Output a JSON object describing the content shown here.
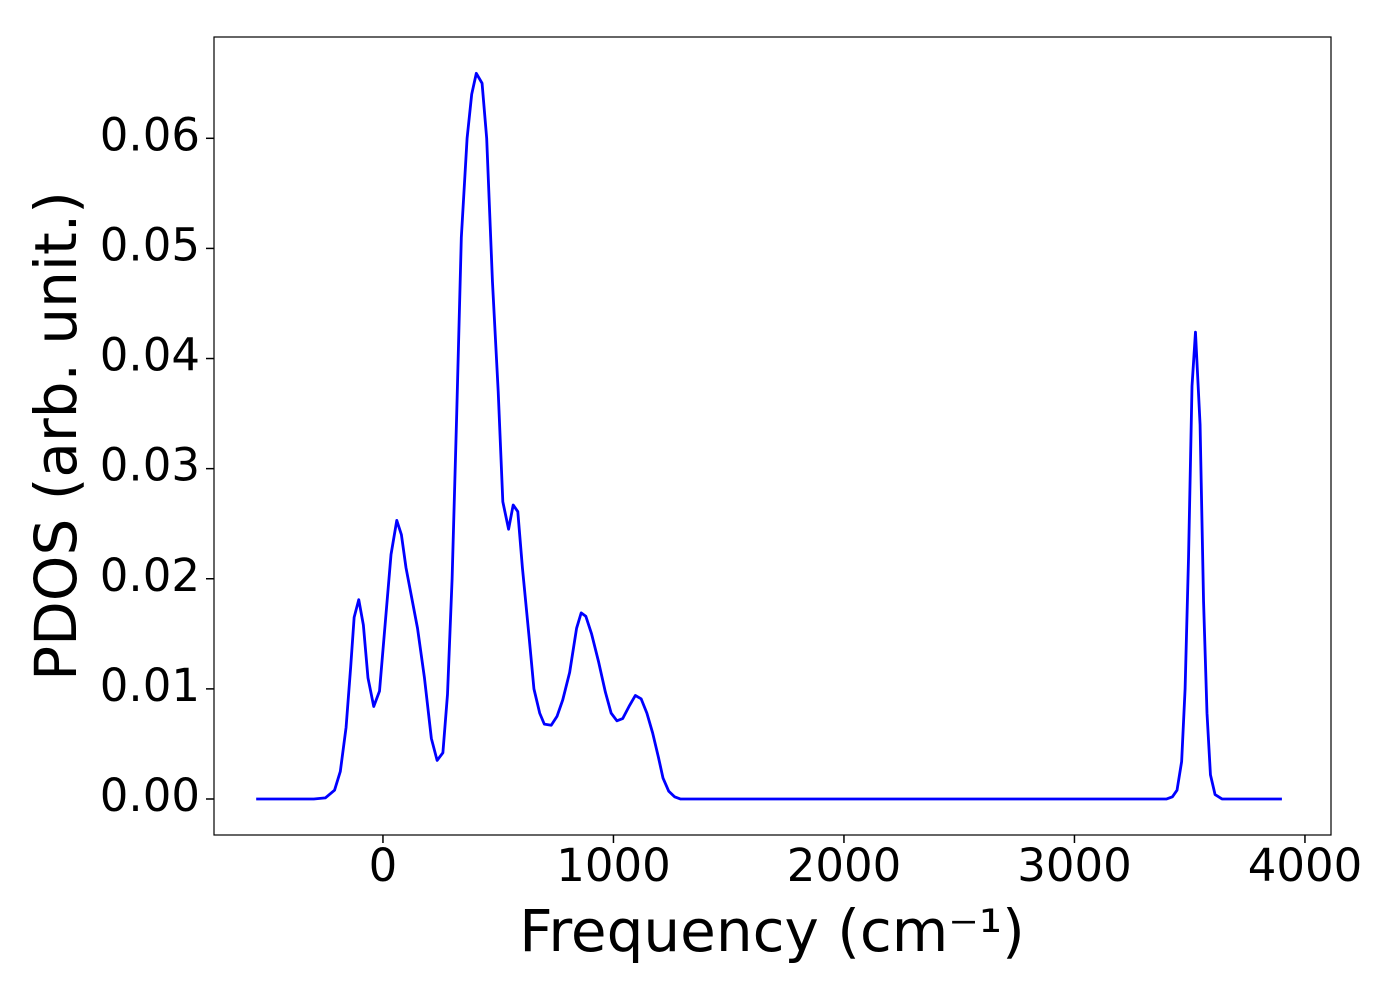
{
  "chart_data": {
    "type": "line",
    "xlabel": "Frequency (cm⁻¹)",
    "ylabel": "PDOS (arb. unit.)",
    "xlim": [
      -733,
      4113
    ],
    "ylim": [
      -0.00327,
      0.0692
    ],
    "xticks": [
      0,
      1000,
      2000,
      3000,
      4000
    ],
    "yticks": [
      {
        "value": 0,
        "label": "0.00"
      },
      {
        "value": 0.01,
        "label": "0.01"
      },
      {
        "value": 0.02,
        "label": "0.02"
      },
      {
        "value": 0.03,
        "label": "0.03"
      },
      {
        "value": 0.04,
        "label": "0.04"
      },
      {
        "value": 0.05,
        "label": "0.05"
      },
      {
        "value": 0.06,
        "label": "0.06"
      }
    ],
    "grid": false,
    "x": [
      -550,
      -300,
      -250,
      -210,
      -185,
      -160,
      -140,
      -125,
      -105,
      -85,
      -65,
      -40,
      -15,
      10,
      35,
      60,
      80,
      100,
      150,
      180,
      210,
      235,
      260,
      280,
      300,
      320,
      340,
      365,
      385,
      405,
      430,
      450,
      475,
      500,
      520,
      545,
      565,
      585,
      605,
      635,
      655,
      680,
      700,
      730,
      755,
      780,
      810,
      840,
      860,
      880,
      905,
      935,
      965,
      990,
      1015,
      1040,
      1070,
      1095,
      1120,
      1145,
      1170,
      1195,
      1215,
      1240,
      1265,
      1290,
      3400,
      3425,
      3445,
      3465,
      3480,
      3495,
      3510,
      3525,
      3545,
      3560,
      3575,
      3590,
      3610,
      3640,
      3900
    ],
    "series": [
      {
        "name": "PDOS",
        "color": "#0000ff",
        "values": [
          0,
          0,
          0.0001,
          0.0008,
          0.0025,
          0.0065,
          0.012,
          0.0165,
          0.0181,
          0.0158,
          0.011,
          0.0084,
          0.0098,
          0.016,
          0.0222,
          0.0253,
          0.024,
          0.021,
          0.0155,
          0.011,
          0.0055,
          0.0035,
          0.0042,
          0.0095,
          0.02,
          0.035,
          0.051,
          0.06,
          0.064,
          0.0659,
          0.065,
          0.06,
          0.047,
          0.037,
          0.027,
          0.0245,
          0.0267,
          0.0261,
          0.021,
          0.0145,
          0.01,
          0.0078,
          0.0068,
          0.0067,
          0.0075,
          0.009,
          0.0115,
          0.0155,
          0.0169,
          0.0166,
          0.015,
          0.0125,
          0.0097,
          0.0078,
          0.0071,
          0.0073,
          0.0085,
          0.0094,
          0.0091,
          0.0078,
          0.006,
          0.0038,
          0.0019,
          0.0007,
          0.0002,
          0,
          0,
          0.0002,
          0.0008,
          0.0034,
          0.01,
          0.022,
          0.0375,
          0.0424,
          0.034,
          0.018,
          0.0078,
          0.0022,
          0.0004,
          0,
          0
        ]
      }
    ]
  }
}
